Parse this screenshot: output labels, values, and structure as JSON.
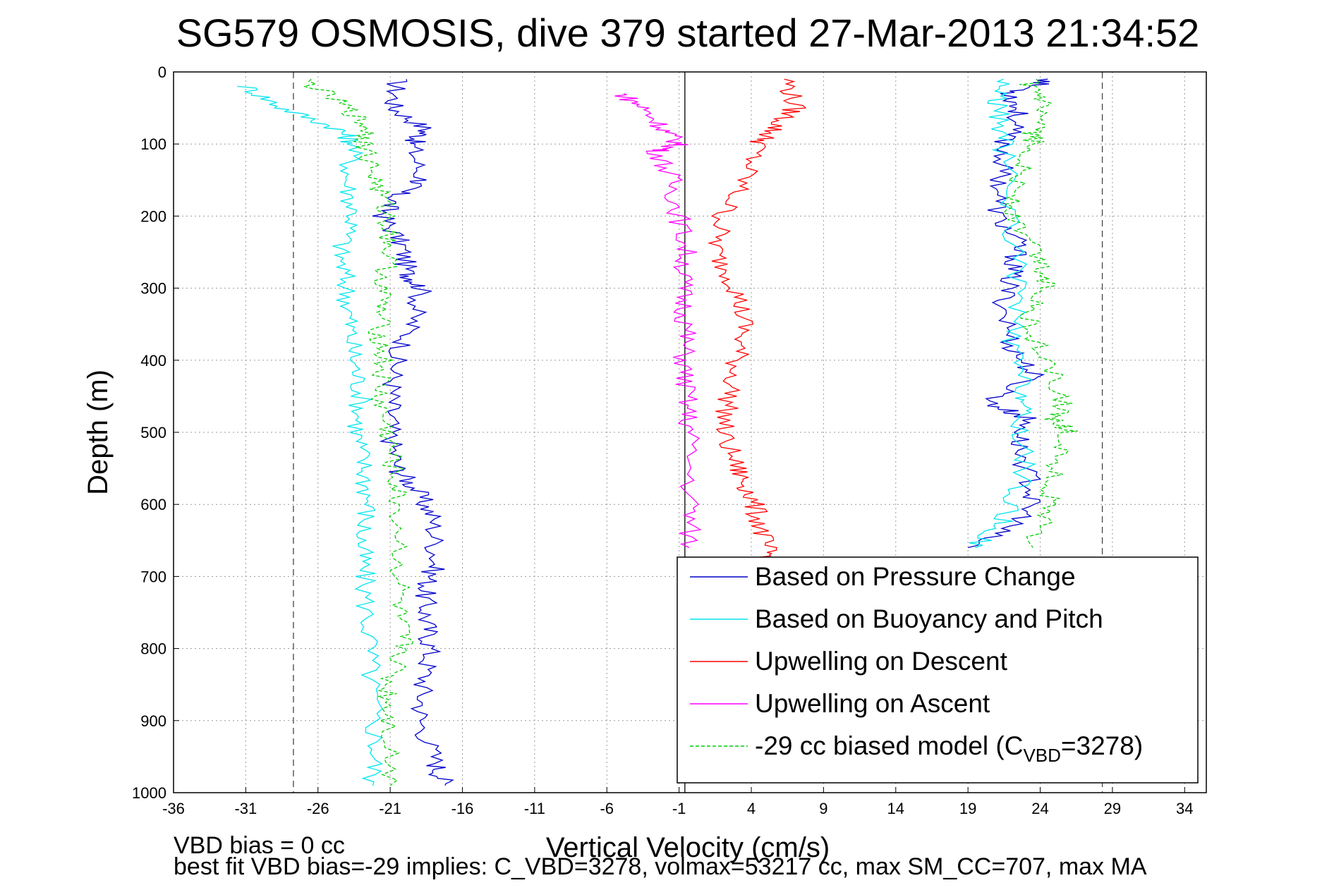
{
  "chart_data": {
    "type": "line",
    "title": "SG579 OSMOSIS, dive 379 started 27-Mar-2013 21:34:52",
    "xlabel": "Vertical Velocity (cm/s)",
    "ylabel": "Depth (m)",
    "xlim": [
      -36,
      35.5
    ],
    "ylim": [
      0,
      1000
    ],
    "y_reversed": true,
    "xticks": [
      -36,
      -31,
      -26,
      -21,
      -16,
      -11,
      -6,
      -1,
      4,
      9,
      14,
      19,
      24,
      29,
      34
    ],
    "yticks": [
      0,
      100,
      200,
      300,
      400,
      500,
      600,
      700,
      800,
      900,
      1000
    ],
    "grid": true,
    "legend_position": "bottom-right",
    "vertical_reference_lines": [
      -27.7,
      28.3
    ],
    "zero_line_x": -0.6,
    "footer_lines": [
      "VBD bias = 0 cc",
      "best fit VBD bias=-29 implies: C_VBD=3278, volmax=53217 cc, max SM_CC=707, max MA"
    ],
    "series": [
      {
        "name": "Based on Pressure Change",
        "color": "#0000cc",
        "style": "solid",
        "x": [
          -20.5,
          -20.8,
          -18.5,
          -19.5,
          -18.8,
          -20.5,
          -21.5,
          -20.2,
          -19.8,
          -18.8,
          -19.5,
          -20.6,
          -20.9,
          -21.0,
          -20.5,
          -19.2,
          -18.0,
          -17.8,
          -18.6,
          -18.5,
          -18.2,
          -18.7,
          -18.9,
          -17.8,
          -17.2
        ],
        "y": [
          10,
          50,
          80,
          100,
          150,
          170,
          200,
          240,
          280,
          300,
          350,
          400,
          450,
          500,
          550,
          580,
          620,
          680,
          720,
          760,
          800,
          850,
          900,
          960,
          990
        ],
        "x2": [
          24.8,
          22.0,
          22.5,
          21.5,
          21.3,
          21.0,
          22.5,
          22.0,
          21.5,
          22.0,
          23.5,
          20.5,
          23.0,
          22.5,
          23.5,
          22.8,
          19.0
        ],
        "y2": [
          10,
          30,
          60,
          100,
          150,
          200,
          240,
          280,
          320,
          380,
          420,
          460,
          480,
          520,
          580,
          620,
          660
        ]
      },
      {
        "name": "Based on Buoyancy and Pitch",
        "color": "#00e5ee",
        "style": "solid",
        "x": [
          -31.0,
          -28.5,
          -24.5,
          -23.5,
          -24.0,
          -23.5,
          -24.5,
          -24.0,
          -23.8,
          -23.5,
          -23.0,
          -23.3,
          -22.8,
          -22.5,
          -23.0,
          -22.8,
          -22.5,
          -22.3,
          -22.0,
          -22.2
        ],
        "y": [
          20,
          50,
          80,
          100,
          150,
          200,
          250,
          300,
          350,
          400,
          450,
          500,
          550,
          600,
          650,
          700,
          770,
          850,
          930,
          990
        ],
        "x2": [
          21.5,
          21.0,
          21.5,
          22.0,
          22.5,
          22.0,
          23.0,
          22.5,
          23.0,
          21.5,
          19.5
        ],
        "y2": [
          10,
          50,
          100,
          200,
          300,
          380,
          450,
          480,
          550,
          620,
          660
        ]
      },
      {
        "name": "Upwelling on Descent",
        "color": "#ff0000",
        "style": "solid",
        "x": [
          6.5,
          7.0,
          5.5,
          4.5,
          3.5,
          2.0,
          1.5,
          3.0,
          3.5,
          3.0,
          2.5,
          2.0,
          3.0,
          3.8,
          4.5,
          5.0,
          5.5
        ],
        "y": [
          10,
          50,
          80,
          100,
          150,
          200,
          250,
          300,
          350,
          400,
          450,
          500,
          550,
          580,
          620,
          660,
          680
        ]
      },
      {
        "name": "Upwelling on Ascent",
        "color": "#ff00ff",
        "style": "solid",
        "x": [
          -5.0,
          -3.5,
          -2.0,
          -1.0,
          -2.5,
          -1.5,
          -1.0,
          -0.5,
          -0.8,
          -0.5,
          -0.7,
          -0.5,
          -0.3,
          -0.2,
          -0.3
        ],
        "y": [
          30,
          50,
          80,
          100,
          110,
          150,
          200,
          250,
          300,
          350,
          400,
          450,
          500,
          600,
          660
        ]
      },
      {
        "name": "-29 cc biased model (C_VBD=3278)",
        "color": "#00cc00",
        "style": "dashed",
        "x": [
          -27.0,
          -24.0,
          -22.5,
          -22.8,
          -22.0,
          -21.2,
          -21.0,
          -21.5,
          -21.8,
          -21.5,
          -21.8,
          -21.2,
          -20.8,
          -20.5,
          -20.3,
          -20.5,
          -20.0,
          -21.2,
          -21.0,
          -21.0
        ],
        "y": [
          10,
          50,
          80,
          100,
          150,
          200,
          240,
          300,
          350,
          400,
          450,
          500,
          550,
          600,
          700,
          760,
          800,
          850,
          900,
          990
        ],
        "x2": [
          23.0,
          24.0,
          23.5,
          23.5,
          22.5,
          22.0,
          24.0,
          24.5,
          23.0,
          24.5,
          25.5,
          25.0,
          26.0,
          25.0,
          24.5,
          23.5
        ],
        "y2": [
          10,
          40,
          80,
          100,
          150,
          200,
          260,
          300,
          350,
          400,
          460,
          480,
          500,
          550,
          600,
          660
        ]
      }
    ]
  }
}
